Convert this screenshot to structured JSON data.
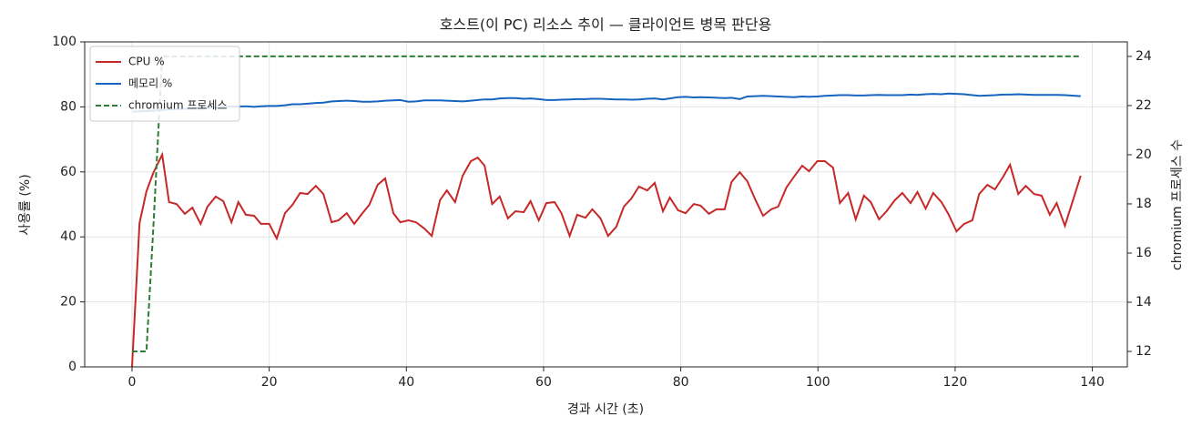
{
  "chart_data": {
    "type": "line",
    "title": "호스트(이 PC) 리소스 추이 — 클라이언트 병목 판단용",
    "x_label": "경과 시간 (초)",
    "y_label": "사용률 (%)",
    "y2_label": "chromium 프로세스 수",
    "x": [
      0,
      1.1,
      2.1,
      3.1,
      4.4,
      5.4,
      6.5,
      7.7,
      8.8,
      10,
      11,
      12.2,
      13.3,
      14.5,
      15.5,
      16.6,
      17.8,
      18.8,
      20,
      21.1,
      22.3,
      23.4,
      24.5,
      25.6,
      26.8,
      27.9,
      29.1,
      30.1,
      31.3,
      32.4,
      33.6,
      34.6,
      35.8,
      36.9,
      38.1,
      39.1,
      40.3,
      41.4,
      42.6,
      43.7,
      44.9,
      45.9,
      47.1,
      48.2,
      49.4,
      50.4,
      51.4,
      52.5,
      53.6,
      54.8,
      55.9,
      57.1,
      58.1,
      59.3,
      60.4,
      61.6,
      62.6,
      63.8,
      64.9,
      66.1,
      67.1,
      68.3,
      69.4,
      70.6,
      71.7,
      72.8,
      73.9,
      75.1,
      76.2,
      77.4,
      78.4,
      79.6,
      80.7,
      81.9,
      82.9,
      84.1,
      85.2,
      86.4,
      87.4,
      88.6,
      89.7,
      90.9,
      92,
      93.2,
      94.2,
      95.4,
      96.5,
      97.7,
      98.7,
      99.9,
      101,
      102.2,
      103.2,
      104.4,
      105.5,
      106.7,
      107.7,
      108.9,
      110,
      111.2,
      112.3,
      113.5,
      114.5,
      115.7,
      116.8,
      118,
      119,
      120.2,
      121.3,
      122.5,
      123.5,
      124.7,
      125.8,
      127,
      128,
      129.2,
      130.3,
      131.5,
      132.6,
      133.8,
      134.8,
      136,
      138.3
    ],
    "series": [
      {
        "name": "CPU %",
        "color": "#c62828",
        "linestyle": "solid",
        "axis": "y",
        "values": [
          0,
          44.3,
          54,
          59.7,
          65.3,
          50.7,
          50.1,
          47.1,
          49,
          44,
          49.3,
          52.4,
          51,
          44.5,
          50.7,
          46.8,
          46.5,
          44,
          44,
          39.5,
          47.3,
          49.9,
          53.5,
          53.2,
          55.7,
          53.2,
          44.5,
          45.1,
          47.3,
          44,
          47.3,
          49.9,
          56,
          58,
          47.3,
          44.5,
          45.1,
          44.5,
          42.6,
          40.3,
          51.3,
          54.3,
          50.7,
          58.8,
          63.3,
          64.4,
          61.9,
          50.1,
          52.4,
          45.7,
          47.9,
          47.6,
          51,
          45.1,
          50.4,
          50.7,
          47.3,
          40.3,
          46.8,
          45.9,
          48.5,
          45.7,
          40.3,
          43.1,
          49.3,
          51.8,
          55.5,
          54.3,
          56.6,
          47.9,
          52.1,
          48.2,
          47.3,
          50.1,
          49.6,
          47.1,
          48.5,
          48.5,
          56.9,
          59.9,
          57.1,
          51.3,
          46.5,
          48.5,
          49.3,
          55.2,
          58.5,
          61.9,
          60.2,
          63.3,
          63.3,
          61.3,
          50.4,
          53.5,
          45.4,
          52.7,
          50.7,
          45.4,
          47.9,
          51.3,
          53.5,
          50.4,
          53.8,
          48.7,
          53.5,
          50.7,
          47.1,
          41.7,
          44,
          45.1,
          53.2,
          56,
          54.6,
          58.5,
          62.2,
          53.2,
          55.7,
          53.2,
          52.7,
          46.8,
          50.4,
          43.4,
          58.8
        ]
      },
      {
        "name": "메모리 %",
        "color": "#1565c0",
        "linestyle": "solid",
        "axis": "y",
        "values": [
          78.5,
          78.6,
          78.7,
          78.8,
          79,
          79.2,
          79.3,
          79.4,
          79.5,
          79.5,
          79.6,
          79.8,
          80,
          80.1,
          80.1,
          80.2,
          80,
          80.2,
          80.3,
          80.3,
          80.5,
          80.8,
          80.8,
          81,
          81.2,
          81.3,
          81.7,
          81.8,
          81.9,
          81.8,
          81.6,
          81.6,
          81.7,
          81.9,
          82,
          82.1,
          81.6,
          81.7,
          82,
          82,
          82,
          81.9,
          81.8,
          81.7,
          81.9,
          82.1,
          82.3,
          82.3,
          82.6,
          82.7,
          82.7,
          82.5,
          82.6,
          82.4,
          82.1,
          82.1,
          82.2,
          82.3,
          82.4,
          82.4,
          82.5,
          82.5,
          82.4,
          82.3,
          82.3,
          82.2,
          82.3,
          82.5,
          82.6,
          82.3,
          82.6,
          83,
          83.1,
          82.9,
          83,
          82.9,
          82.8,
          82.7,
          82.8,
          82.4,
          83.2,
          83.3,
          83.4,
          83.3,
          83.2,
          83.1,
          83,
          83.2,
          83.1,
          83.2,
          83.4,
          83.5,
          83.6,
          83.6,
          83.5,
          83.5,
          83.6,
          83.7,
          83.6,
          83.6,
          83.6,
          83.8,
          83.7,
          83.9,
          84,
          83.9,
          84.1,
          84,
          83.9,
          83.6,
          83.4,
          83.5,
          83.6,
          83.8,
          83.8,
          83.9,
          83.8,
          83.7,
          83.7,
          83.7,
          83.7,
          83.6,
          83.3
        ]
      },
      {
        "name": "chromium 프로세스",
        "color": "#2e7d32",
        "linestyle": "dashed",
        "axis": "y2",
        "values": [
          12,
          12,
          12,
          17,
          24,
          24,
          24,
          24,
          24,
          24,
          24,
          24,
          24,
          24,
          24,
          24,
          24,
          24,
          24,
          24,
          24,
          24,
          24,
          24,
          24,
          24,
          24,
          24,
          24,
          24,
          24,
          24,
          24,
          24,
          24,
          24,
          24,
          24,
          24,
          24,
          24,
          24,
          24,
          24,
          24,
          24,
          24,
          24,
          24,
          24,
          24,
          24,
          24,
          24,
          24,
          24,
          24,
          24,
          24,
          24,
          24,
          24,
          24,
          24,
          24,
          24,
          24,
          24,
          24,
          24,
          24,
          24,
          24,
          24,
          24,
          24,
          24,
          24,
          24,
          24,
          24,
          24,
          24,
          24,
          24,
          24,
          24,
          24,
          24,
          24,
          24,
          24,
          24,
          24,
          24,
          24,
          24,
          24,
          24,
          24,
          24,
          24,
          24,
          24,
          24,
          24,
          24,
          24,
          24,
          24,
          24,
          24,
          24,
          24,
          24,
          24,
          24,
          24,
          24,
          24,
          24,
          24,
          24
        ]
      }
    ],
    "xlim": [
      -6.9,
      145.1
    ],
    "xticks": [
      0,
      20,
      40,
      60,
      80,
      100,
      120,
      140
    ],
    "ylim": [
      0,
      100
    ],
    "yticks": [
      0,
      20,
      40,
      60,
      80,
      100
    ],
    "y2lim": [
      11.37,
      24.59
    ],
    "y2ticks": [
      12,
      14,
      16,
      18,
      20,
      22,
      24
    ],
    "grid": true,
    "legend": "upper-left"
  }
}
